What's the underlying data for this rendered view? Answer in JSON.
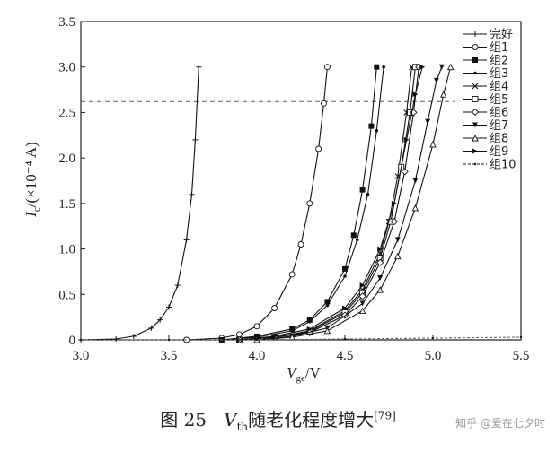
{
  "chart_data": {
    "type": "line",
    "xlabel_main": "V",
    "xlabel_sub": "ge",
    "xlabel_unit": "/V",
    "ylabel_main": "I",
    "ylabel_sub": "c",
    "ylabel_unit": "/(×10⁻⁴ A)",
    "xlim": [
      3.0,
      5.5
    ],
    "ylim": [
      0,
      3.5
    ],
    "xticks": [
      "3.0",
      "3.5",
      "4.0",
      "4.5",
      "5.0",
      "5.5"
    ],
    "yticks": [
      "0",
      "0.5",
      "1.0",
      "1.5",
      "2.0",
      "2.5",
      "3.0",
      "3.5"
    ],
    "grid": false,
    "legend_position": "top-right",
    "reference_line": {
      "y": 2.62,
      "style": "dashed"
    },
    "series": [
      {
        "name": "完好",
        "marker": "plus",
        "values": [
          [
            3.0,
            0.0
          ],
          [
            3.2,
            0.01
          ],
          [
            3.3,
            0.04
          ],
          [
            3.4,
            0.13
          ],
          [
            3.45,
            0.22
          ],
          [
            3.5,
            0.36
          ],
          [
            3.55,
            0.6
          ],
          [
            3.6,
            1.1
          ],
          [
            3.63,
            1.6
          ],
          [
            3.65,
            2.2
          ],
          [
            3.67,
            3.0
          ]
        ]
      },
      {
        "name": "组1",
        "marker": "circle-open",
        "values": [
          [
            3.6,
            0.0
          ],
          [
            3.8,
            0.02
          ],
          [
            3.9,
            0.06
          ],
          [
            4.0,
            0.15
          ],
          [
            4.1,
            0.35
          ],
          [
            4.2,
            0.72
          ],
          [
            4.25,
            1.05
          ],
          [
            4.3,
            1.5
          ],
          [
            4.35,
            2.1
          ],
          [
            4.38,
            2.6
          ],
          [
            4.4,
            3.0
          ]
        ]
      },
      {
        "name": "组2",
        "marker": "square-filled",
        "values": [
          [
            3.8,
            0.0
          ],
          [
            4.0,
            0.04
          ],
          [
            4.2,
            0.12
          ],
          [
            4.3,
            0.22
          ],
          [
            4.4,
            0.42
          ],
          [
            4.5,
            0.78
          ],
          [
            4.55,
            1.15
          ],
          [
            4.6,
            1.65
          ],
          [
            4.65,
            2.35
          ],
          [
            4.68,
            3.0
          ]
        ]
      },
      {
        "name": "组3",
        "marker": "dot",
        "values": [
          [
            3.8,
            0.0
          ],
          [
            4.0,
            0.03
          ],
          [
            4.2,
            0.1
          ],
          [
            4.3,
            0.2
          ],
          [
            4.4,
            0.38
          ],
          [
            4.5,
            0.7
          ],
          [
            4.57,
            1.1
          ],
          [
            4.63,
            1.6
          ],
          [
            4.68,
            2.3
          ],
          [
            4.72,
            3.0
          ]
        ]
      },
      {
        "name": "组4",
        "marker": "cross",
        "values": [
          [
            3.9,
            0.0
          ],
          [
            4.1,
            0.03
          ],
          [
            4.3,
            0.1
          ],
          [
            4.5,
            0.32
          ],
          [
            4.6,
            0.55
          ],
          [
            4.7,
            0.95
          ],
          [
            4.75,
            1.3
          ],
          [
            4.8,
            1.8
          ],
          [
            4.85,
            2.5
          ],
          [
            4.88,
            3.0
          ]
        ]
      },
      {
        "name": "组5",
        "marker": "square-open",
        "values": [
          [
            3.9,
            0.0
          ],
          [
            4.1,
            0.03
          ],
          [
            4.3,
            0.09
          ],
          [
            4.5,
            0.3
          ],
          [
            4.6,
            0.52
          ],
          [
            4.7,
            0.9
          ],
          [
            4.76,
            1.3
          ],
          [
            4.82,
            1.9
          ],
          [
            4.87,
            2.5
          ],
          [
            4.9,
            3.0
          ]
        ]
      },
      {
        "name": "组6",
        "marker": "diamond-open",
        "values": [
          [
            3.9,
            0.0
          ],
          [
            4.1,
            0.03
          ],
          [
            4.3,
            0.08
          ],
          [
            4.5,
            0.27
          ],
          [
            4.6,
            0.48
          ],
          [
            4.7,
            0.85
          ],
          [
            4.78,
            1.3
          ],
          [
            4.84,
            1.85
          ],
          [
            4.89,
            2.5
          ],
          [
            4.92,
            3.0
          ]
        ]
      },
      {
        "name": "组7",
        "marker": "triangle-down-filled",
        "values": [
          [
            4.0,
            0.0
          ],
          [
            4.2,
            0.04
          ],
          [
            4.4,
            0.13
          ],
          [
            4.6,
            0.4
          ],
          [
            4.7,
            0.68
          ],
          [
            4.8,
            1.1
          ],
          [
            4.9,
            1.75
          ],
          [
            4.97,
            2.4
          ],
          [
            5.02,
            2.85
          ],
          [
            5.05,
            3.0
          ]
        ]
      },
      {
        "name": "组8",
        "marker": "triangle-up-open",
        "values": [
          [
            4.0,
            0.0
          ],
          [
            4.2,
            0.03
          ],
          [
            4.4,
            0.1
          ],
          [
            4.6,
            0.32
          ],
          [
            4.7,
            0.55
          ],
          [
            4.8,
            0.92
          ],
          [
            4.9,
            1.45
          ],
          [
            5.0,
            2.15
          ],
          [
            5.06,
            2.7
          ],
          [
            5.1,
            3.0
          ]
        ]
      },
      {
        "name": "组9",
        "marker": "triangle-right-filled",
        "values": [
          [
            3.9,
            0.0
          ],
          [
            4.1,
            0.04
          ],
          [
            4.3,
            0.12
          ],
          [
            4.5,
            0.35
          ],
          [
            4.6,
            0.6
          ],
          [
            4.7,
            1.0
          ],
          [
            4.78,
            1.5
          ],
          [
            4.85,
            2.2
          ],
          [
            4.9,
            2.7
          ],
          [
            4.94,
            3.0
          ]
        ]
      },
      {
        "name": "组10",
        "marker": "dot-dashed",
        "values": [
          [
            3.0,
            0.0
          ],
          [
            3.5,
            0.0
          ],
          [
            4.0,
            0.0
          ],
          [
            4.5,
            0.01
          ],
          [
            5.0,
            0.02
          ],
          [
            5.5,
            0.03
          ]
        ]
      }
    ]
  },
  "caption": {
    "figure": "图 25",
    "v": "V",
    "v_sub": "th",
    "text": "随老化程度增大",
    "ref": "[79]"
  },
  "watermark": "知乎 @爱在七夕时"
}
